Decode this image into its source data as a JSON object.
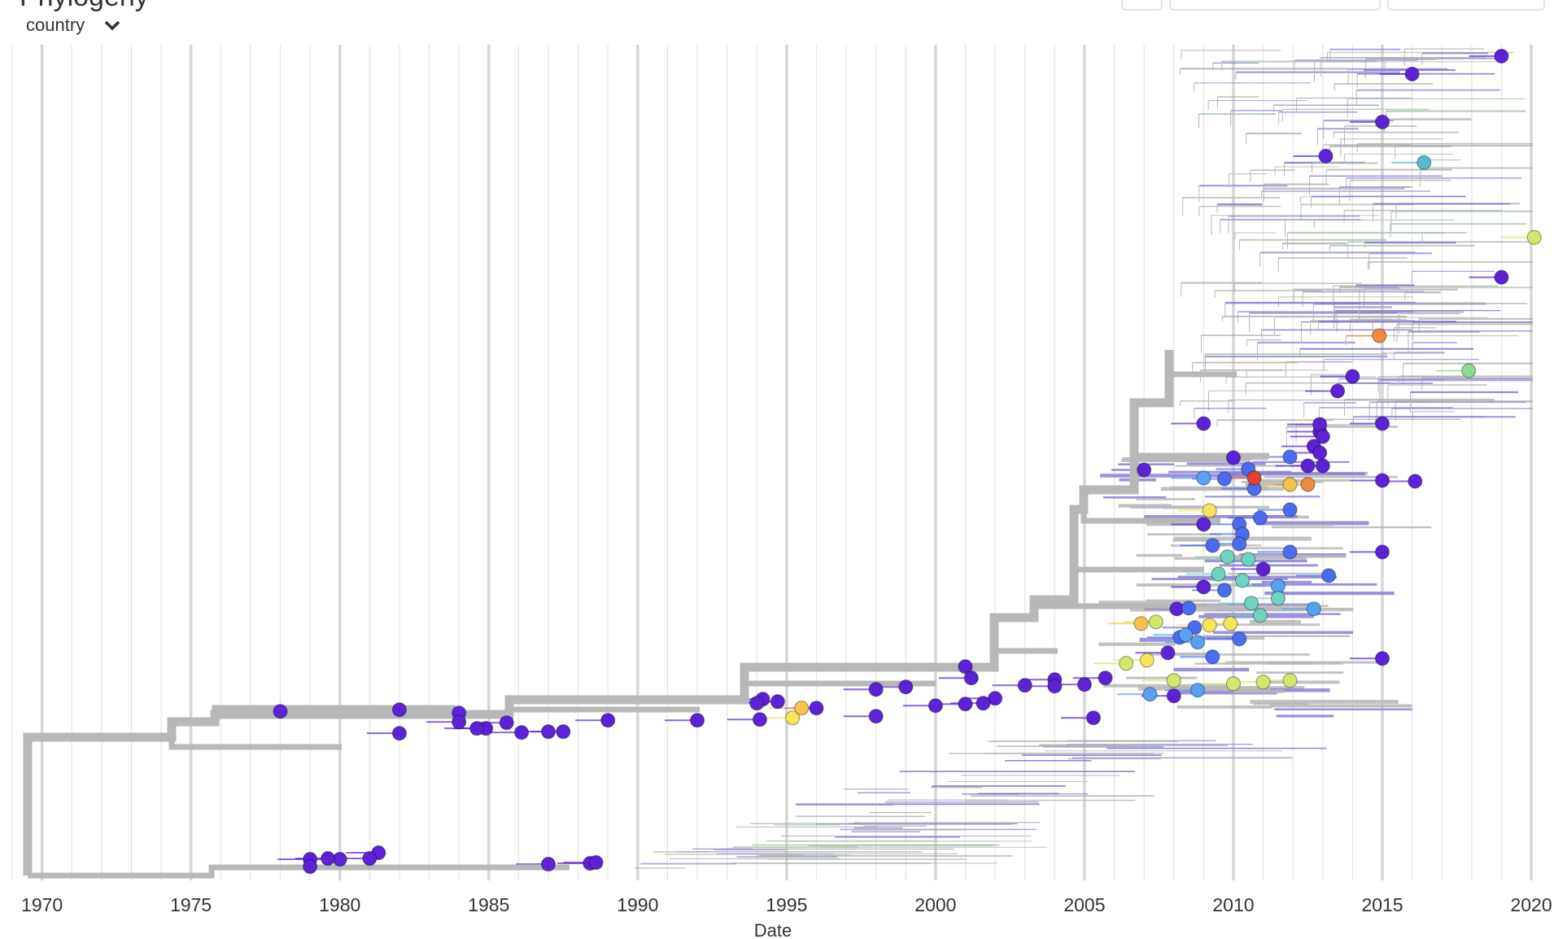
{
  "header": {
    "title": "Phylogeny",
    "color_by": "country"
  },
  "chart_data": {
    "type": "tree",
    "x_label": "Date",
    "xlim": [
      1968.59,
      2021.2
    ],
    "ylim": [
      -2,
      100
    ],
    "xticks": [
      1970,
      1975,
      1980,
      1985,
      1990,
      1995,
      2000,
      2005,
      2010,
      2015,
      2020
    ],
    "xticks_minor": [
      1969,
      1971,
      1972,
      1973,
      1974,
      1976,
      1977,
      1978,
      1979,
      1981,
      1982,
      1983,
      1984,
      1986,
      1987,
      1988,
      1989,
      1991,
      1992,
      1993,
      1994,
      1996,
      1997,
      1998,
      1999,
      2001,
      2002,
      2003,
      2004,
      2006,
      2007,
      2008,
      2009,
      2011,
      2012,
      2013,
      2014,
      2016,
      2017,
      2018,
      2019
    ],
    "grid": true,
    "series": [
      {
        "color": "#5b22d6",
        "x": [
          2019.0,
          2016.0,
          2015.0,
          2013.1,
          2019.0,
          2014.0,
          2013.5,
          2009.0,
          2015.0,
          2012.9,
          2007.0,
          2010.0,
          2015.0,
          2016.1,
          2009.0,
          2015.0,
          2011.0,
          2009.0,
          2008.1,
          2007.8,
          2015.0,
          2008.0,
          2005.7,
          2005.0,
          2004.0,
          2004.0,
          2005.3,
          2003.0,
          2002.0,
          2001.6,
          2001.0,
          2001.2,
          2001.0,
          2000.0,
          1999.0,
          1998.0,
          1998.0,
          1996.0,
          1994.7,
          1994.2,
          1994.0,
          1994.1,
          1992.0,
          1989.0,
          1987.5,
          1987.0,
          1986.1,
          1985.6,
          1984.9,
          1984.6,
          1984.0,
          1984.0,
          1982.0,
          1982.0,
          1978.0,
          1981.3,
          1981.0,
          1980.0,
          1979.6,
          1979.0,
          1979.0,
          1987.0,
          1988.4,
          1988.6,
          2012.9,
          2013.0,
          2012.7,
          2012.9,
          2012.5,
          2013.0
        ],
        "values": [
          99.2,
          97.0,
          91.1,
          86.9,
          72.0,
          59.8,
          58.0,
          54.0,
          54.0,
          53.0,
          48.3,
          49.8,
          47.0,
          46.9,
          41.6,
          38.2,
          36.1,
          33.9,
          31.2,
          25.8,
          25.1,
          20.5,
          22.7,
          21.9,
          22.5,
          21.7,
          17.8,
          21.8,
          20.2,
          19.6,
          24.1,
          22.7,
          19.5,
          19.3,
          21.6,
          21.3,
          18.0,
          19.0,
          19.8,
          20.1,
          19.6,
          17.6,
          17.5,
          17.5,
          16.1,
          16.1,
          16.0,
          17.2,
          16.5,
          16.5,
          18.4,
          17.3,
          18.8,
          15.9,
          18.6,
          1.2,
          0.5,
          0.4,
          0.5,
          0.4,
          -0.5,
          -0.2,
          -0.1,
          0.0,
          53.9,
          52.4,
          51.2,
          50.4,
          48.8,
          48.8
        ]
      },
      {
        "color": "#4a6cf0",
        "x": [
          2010.5,
          2009.7,
          2011.9,
          2010.7,
          2011.9,
          2010.9,
          2010.2,
          2011.9,
          2013.2,
          2009.7,
          2010.2,
          2009.3,
          2010.3,
          2010.2,
          2009.3,
          2008.5,
          2008.7,
          2008.2
        ],
        "values": [
          48.4,
          47.2,
          49.9,
          46.0,
          43.4,
          42.4,
          41.6,
          38.2,
          35.3,
          33.5,
          27.5,
          25.3,
          40.4,
          39.2,
          39.0,
          31.3,
          28.9,
          27.7
        ]
      },
      {
        "color": "#5aa0f0",
        "x": [
          2009.0,
          2011.5,
          2012.7,
          2008.4,
          2008.8,
          2008.8,
          2007.2
        ],
        "values": [
          47.3,
          34.0,
          31.2,
          28.0,
          27.1,
          21.2,
          20.7
        ]
      },
      {
        "color": "#6fd3c0",
        "x": [
          2009.8,
          2010.5,
          2011.5,
          2010.9,
          2009.5,
          2010.3,
          2010.6
        ],
        "values": [
          37.6,
          37.3,
          32.5,
          30.4,
          35.5,
          34.7,
          31.9
        ]
      },
      {
        "color": "#5ab8c8",
        "x": [
          2016.4
        ],
        "values": [
          86.1
        ]
      },
      {
        "color": "#d2e86c",
        "x": [
          2020.1,
          2007.4,
          2006.4,
          2008.0,
          2010.0,
          2011.0,
          2011.9
        ],
        "values": [
          76.9,
          29.6,
          24.5,
          22.4,
          22.0,
          22.2,
          22.4
        ]
      },
      {
        "color": "#90d98f",
        "x": [
          2017.9
        ],
        "values": [
          60.5
        ]
      },
      {
        "color": "#f4e55a",
        "x": [
          2009.2,
          2009.2,
          2009.9,
          2007.1,
          1995.2
        ],
        "values": [
          43.3,
          29.2,
          29.4,
          24.9,
          17.8
        ]
      },
      {
        "color": "#f7c24a",
        "x": [
          2011.9,
          2006.9,
          1995.5
        ],
        "values": [
          46.5,
          29.4,
          19.0
        ]
      },
      {
        "color": "#f08a3c",
        "x": [
          2014.9,
          2012.5
        ],
        "values": [
          64.8,
          46.5
        ]
      },
      {
        "color": "#e0442e",
        "x": [
          2010.7
        ],
        "values": [
          47.3
        ]
      }
    ]
  }
}
